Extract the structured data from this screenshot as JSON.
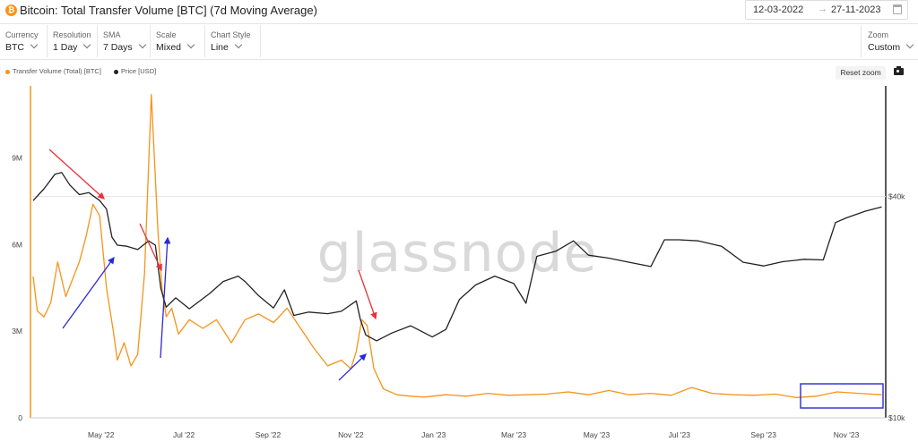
{
  "header": {
    "title": "Bitcoin: Total Transfer Volume [BTC] (7d Moving Average)",
    "icon_glyph": "₿",
    "date_start": "12-03-2022",
    "date_arrow": "→",
    "date_end": "27-11-2023"
  },
  "controls": [
    {
      "label": "Currency",
      "value": "BTC"
    },
    {
      "label": "Resolution",
      "value": "1 Day"
    },
    {
      "label": "SMA",
      "value": "7 Days"
    },
    {
      "label": "Scale",
      "value": "Mixed"
    },
    {
      "label": "Chart Style",
      "value": "Line"
    }
  ],
  "zoom": {
    "label": "Zoom",
    "value": "Custom"
  },
  "toolbar": {
    "reset_label": "Reset zoom",
    "camera_icon": "camera-icon"
  },
  "colors": {
    "volume": "#f7931a",
    "price": "#222222",
    "arrow_red": "#e8323c",
    "arrow_blue": "#2a2ad6",
    "box": "#2a2ad6"
  },
  "chart_data": {
    "type": "line",
    "watermark": "glassnode",
    "x_ticks": [
      "May '22",
      "Jul '22",
      "Sep '22",
      "Nov '22",
      "Jan '23",
      "Mar '23",
      "May '23",
      "Jul '23",
      "Sep '23",
      "Nov '23"
    ],
    "y_left_ticks": [
      "9M",
      "6M",
      "3M",
      "0"
    ],
    "y_right_ticks": [
      "$40k",
      "$10k"
    ],
    "ylim_left": [
      0,
      11500000
    ],
    "ylim_right_price_log": [
      10000,
      80000
    ],
    "legend": [
      {
        "name": "Transfer Volume (Total) [BTC]",
        "color": "#f7931a"
      },
      {
        "name": "Price [USD]",
        "color": "#222222"
      }
    ],
    "series": [
      {
        "name": "Transfer Volume (Total) [BTC]",
        "dates": [
          "2022-03-12",
          "2022-03-15",
          "2022-03-20",
          "2022-03-25",
          "2022-03-30",
          "2022-04-05",
          "2022-04-10",
          "2022-04-15",
          "2022-04-20",
          "2022-04-25",
          "2022-04-30",
          "2022-05-05",
          "2022-05-10",
          "2022-05-13",
          "2022-05-18",
          "2022-05-23",
          "2022-05-28",
          "2022-06-02",
          "2022-06-07",
          "2022-06-12",
          "2022-06-15",
          "2022-06-18",
          "2022-06-22",
          "2022-06-27",
          "2022-07-05",
          "2022-07-15",
          "2022-07-25",
          "2022-08-05",
          "2022-08-15",
          "2022-08-25",
          "2022-09-05",
          "2022-09-15",
          "2022-09-25",
          "2022-10-05",
          "2022-10-15",
          "2022-10-25",
          "2022-11-01",
          "2022-11-05",
          "2022-11-09",
          "2022-11-13",
          "2022-11-18",
          "2022-11-25",
          "2022-12-05",
          "2022-12-15",
          "2022-12-25",
          "2023-01-10",
          "2023-01-25",
          "2023-02-10",
          "2023-02-25",
          "2023-03-10",
          "2023-03-25",
          "2023-04-10",
          "2023-04-25",
          "2023-05-10",
          "2023-05-25",
          "2023-06-10",
          "2023-06-25",
          "2023-07-10",
          "2023-07-25",
          "2023-08-10",
          "2023-08-25",
          "2023-09-10",
          "2023-09-25",
          "2023-10-10",
          "2023-10-25",
          "2023-11-10",
          "2023-11-27"
        ],
        "values": [
          4900000,
          3700000,
          3500000,
          4000000,
          5400000,
          4200000,
          4800000,
          5400000,
          6300000,
          7400000,
          7000000,
          4500000,
          3000000,
          2000000,
          2600000,
          1800000,
          2200000,
          5000000,
          11200000,
          6400000,
          4400000,
          3500000,
          3800000,
          2900000,
          3400000,
          3100000,
          3400000,
          2600000,
          3400000,
          3600000,
          3300000,
          3800000,
          3100000,
          2400000,
          1800000,
          2000000,
          1700000,
          2300000,
          3400000,
          3200000,
          1700000,
          1000000,
          800000,
          750000,
          720000,
          800000,
          750000,
          850000,
          780000,
          800000,
          820000,
          900000,
          800000,
          950000,
          800000,
          850000,
          780000,
          1050000,
          850000,
          800000,
          780000,
          820000,
          700000,
          750000,
          900000,
          850000,
          800000
        ]
      },
      {
        "name": "Price [USD]",
        "dates": [
          "2022-03-12",
          "2022-03-20",
          "2022-03-28",
          "2022-04-02",
          "2022-04-08",
          "2022-04-15",
          "2022-04-22",
          "2022-04-30",
          "2022-05-05",
          "2022-05-09",
          "2022-05-13",
          "2022-05-20",
          "2022-05-28",
          "2022-06-05",
          "2022-06-10",
          "2022-06-14",
          "2022-06-18",
          "2022-06-25",
          "2022-07-05",
          "2022-07-20",
          "2022-07-30",
          "2022-08-10",
          "2022-08-15",
          "2022-08-25",
          "2022-09-05",
          "2022-09-13",
          "2022-09-20",
          "2022-10-01",
          "2022-10-15",
          "2022-10-25",
          "2022-11-05",
          "2022-11-08",
          "2022-11-12",
          "2022-11-20",
          "2022-12-01",
          "2022-12-15",
          "2022-12-31",
          "2023-01-10",
          "2023-01-20",
          "2023-02-01",
          "2023-02-15",
          "2023-03-01",
          "2023-03-10",
          "2023-03-18",
          "2023-04-01",
          "2023-04-14",
          "2023-04-25",
          "2023-05-10",
          "2023-05-25",
          "2023-06-10",
          "2023-06-20",
          "2023-07-01",
          "2023-07-15",
          "2023-08-01",
          "2023-08-17",
          "2023-09-01",
          "2023-09-15",
          "2023-10-01",
          "2023-10-15",
          "2023-10-24",
          "2023-11-01",
          "2023-11-15",
          "2023-11-27"
        ],
        "values": [
          39000,
          42000,
          46000,
          46500,
          43000,
          40500,
          41000,
          39000,
          37000,
          31000,
          29500,
          29300,
          28700,
          30300,
          29500,
          22500,
          20000,
          21200,
          19800,
          21800,
          23500,
          24300,
          23500,
          21500,
          19900,
          22300,
          19000,
          19400,
          19200,
          19500,
          20800,
          18500,
          16800,
          16200,
          17000,
          17800,
          16600,
          17400,
          21000,
          23000,
          24300,
          23200,
          20500,
          27500,
          28400,
          30300,
          27700,
          27200,
          26500,
          25800,
          30500,
          30500,
          30300,
          29300,
          26500,
          25900,
          26600,
          27000,
          26900,
          34000,
          35000,
          36500,
          37500
        ]
      }
    ]
  }
}
